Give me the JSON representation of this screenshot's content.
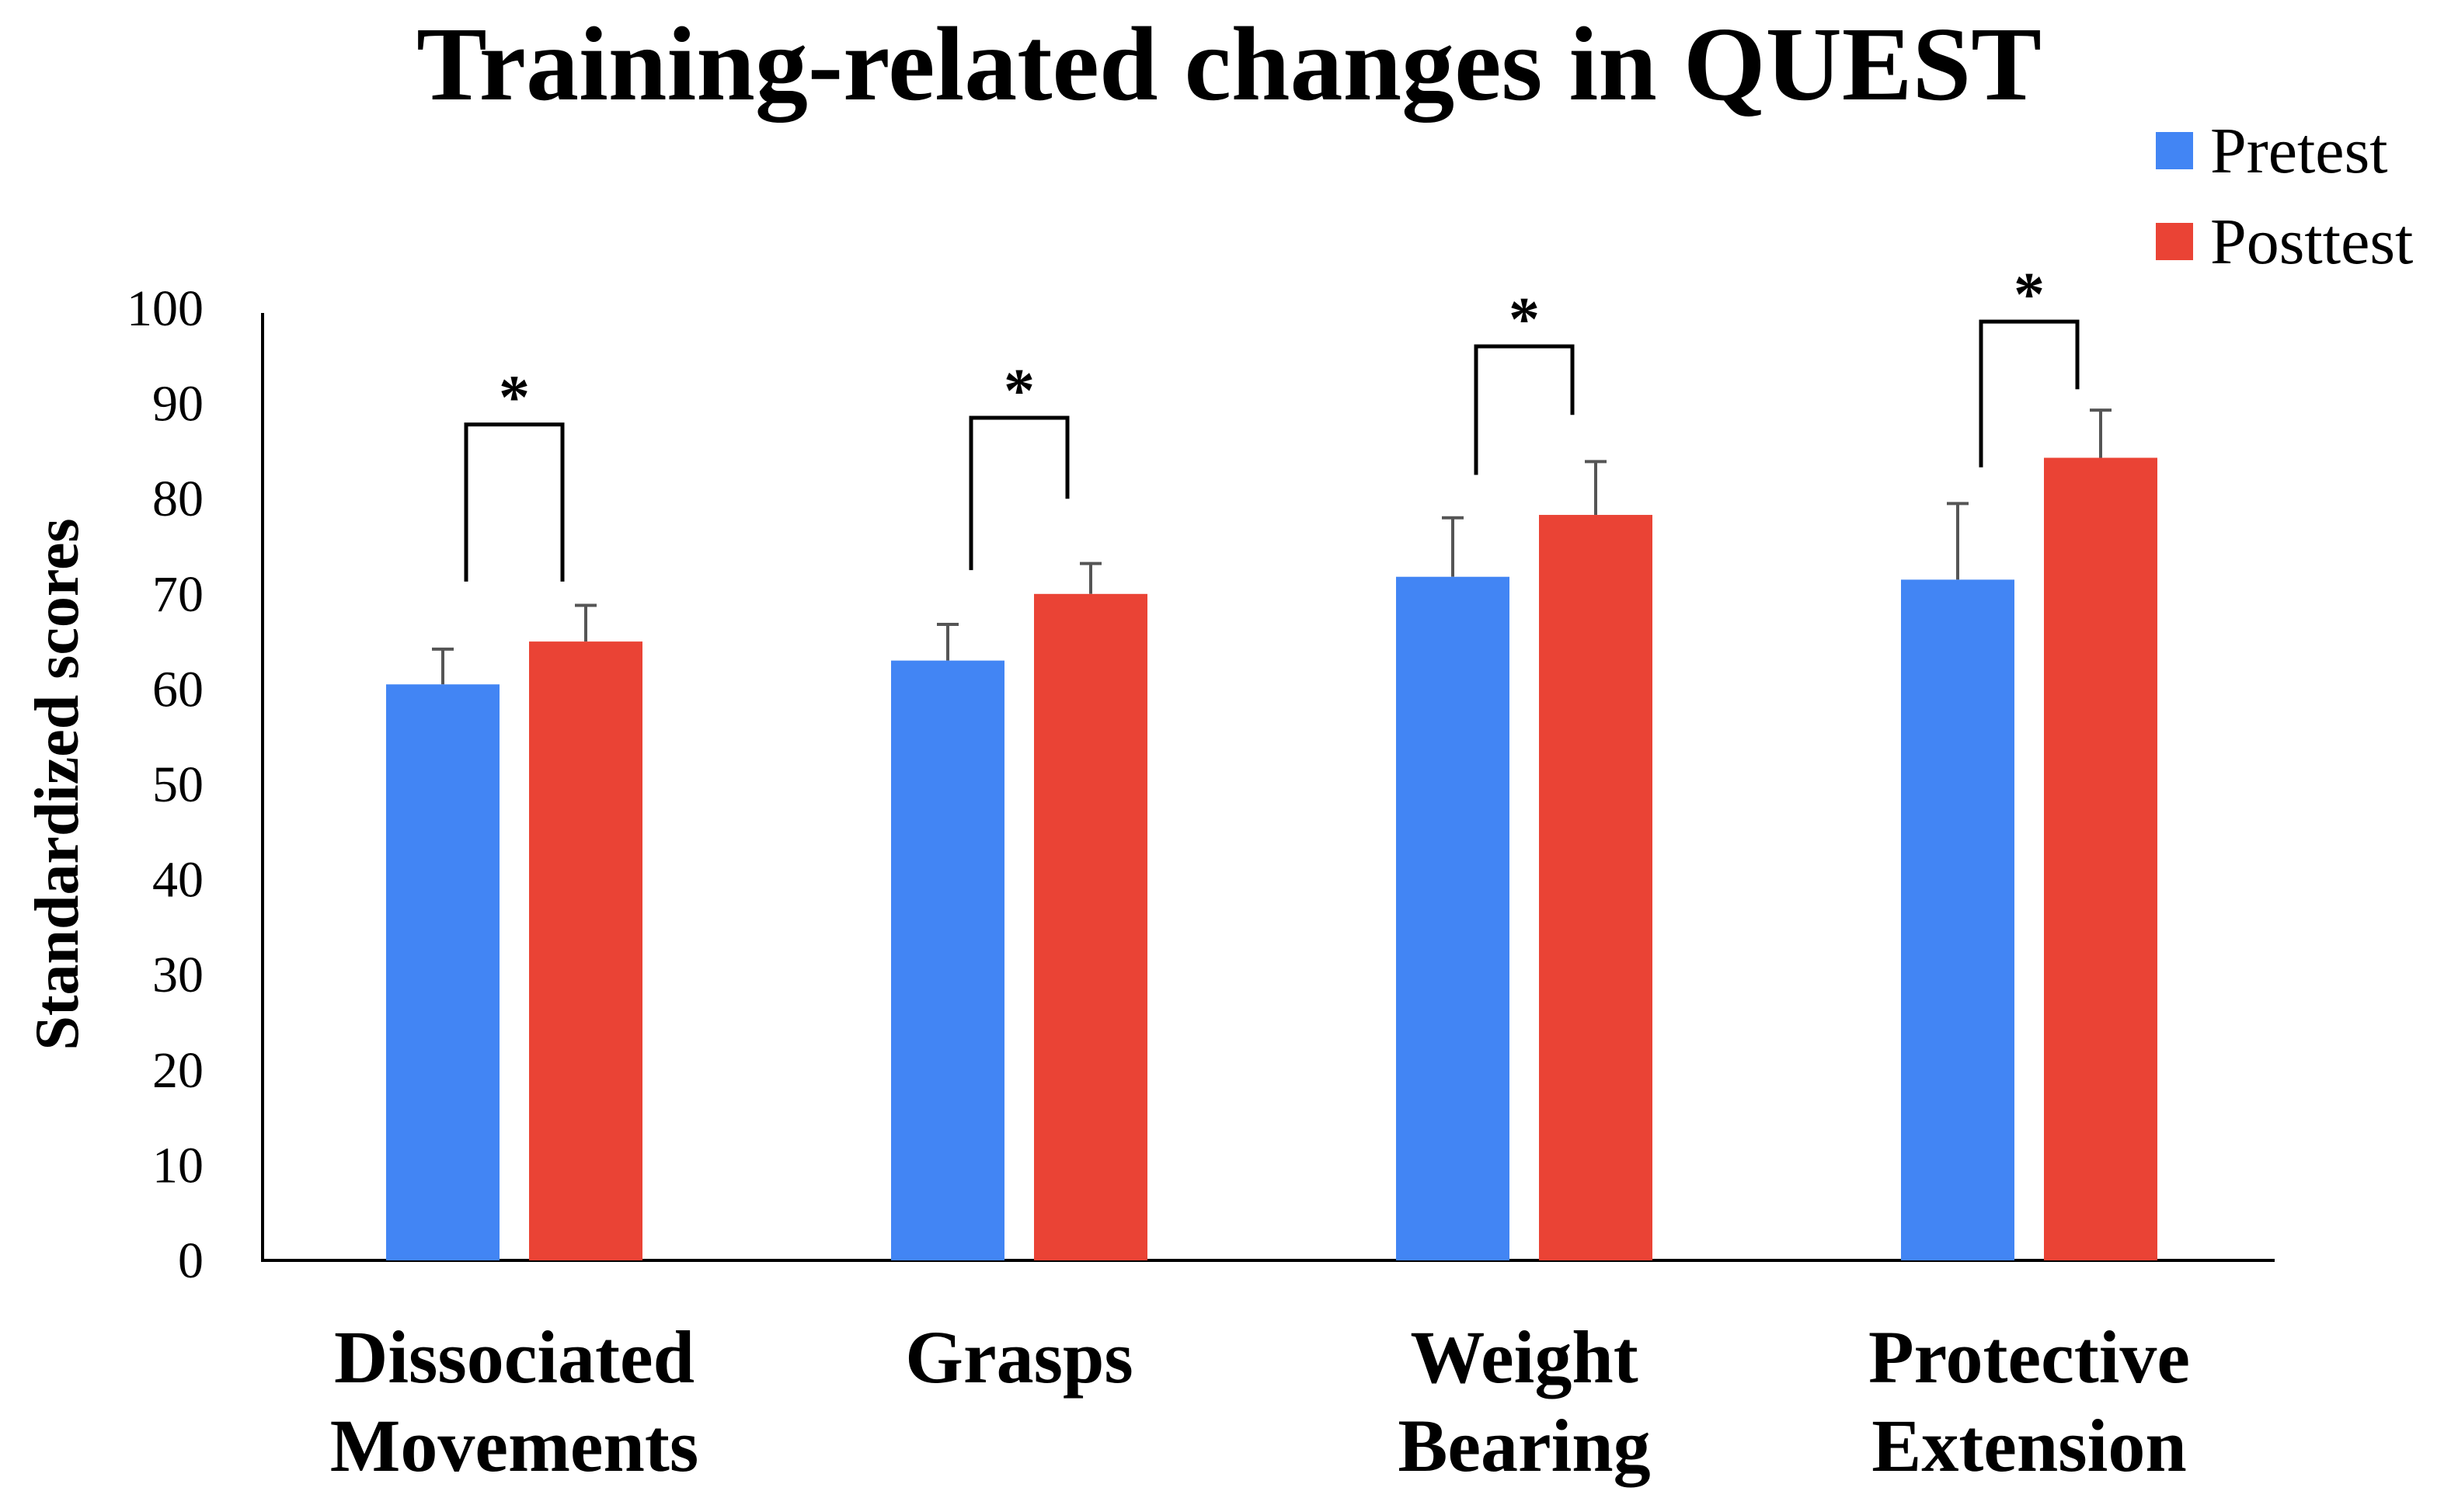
{
  "chart_data": {
    "type": "bar",
    "title": "Training-related changes in QUEST",
    "xlabel": "",
    "ylabel": "Standardized scores",
    "ylim": [
      0,
      100
    ],
    "yticks": [
      "0",
      "10",
      "20",
      "30",
      "40",
      "50",
      "60",
      "70",
      "80",
      "90",
      "100"
    ],
    "categories": [
      [
        "Dissociated",
        "Movements"
      ],
      [
        "Grasps"
      ],
      [
        "Weight",
        "Bearing"
      ],
      [
        "Protective",
        "Extension"
      ]
    ],
    "series": [
      {
        "name": "Pretest",
        "color": "#4285f4",
        "values": [
          60.5,
          63,
          71.8,
          71.5
        ],
        "errors": [
          3.7,
          3.8,
          6.2,
          8
        ]
      },
      {
        "name": "Posttest",
        "color": "#ea4335",
        "values": [
          65,
          70,
          78.3,
          84.3
        ],
        "errors": [
          3.8,
          3.2,
          5.6,
          5
        ]
      }
    ],
    "significance": [
      {
        "category": 0,
        "label": "*",
        "bracket_level": 87.8,
        "left_end": 71.3,
        "right_end": 71.3
      },
      {
        "category": 1,
        "label": "*",
        "bracket_level": 88.5,
        "left_end": 72.5,
        "right_end": 80
      },
      {
        "category": 2,
        "label": "*",
        "bracket_level": 96,
        "left_end": 82.5,
        "right_end": 88.8
      },
      {
        "category": 3,
        "label": "*",
        "bracket_level": 98.6,
        "left_end": 83.3,
        "right_end": 91.5
      }
    ],
    "legend": {
      "position": "top-right"
    },
    "grid": false
  }
}
